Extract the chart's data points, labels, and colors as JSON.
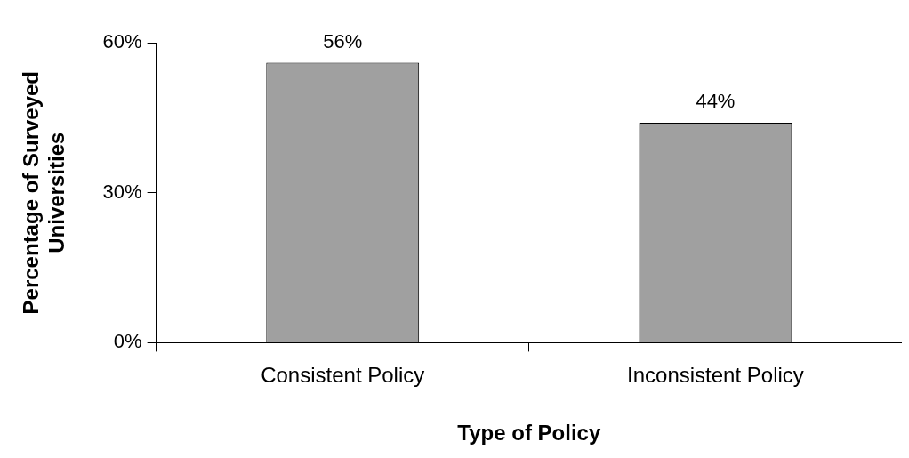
{
  "chart_data": {
    "type": "bar",
    "xlabel": "Type of Policy",
    "ylabel": "Percentage of Surveyed Universities",
    "categories": [
      "Consistent Policy",
      "Inconsistent Policy"
    ],
    "values": [
      56,
      44
    ],
    "color": "#a0a0a0",
    "value_labels": [
      "56%",
      "44%"
    ],
    "ylim": [
      0,
      60
    ],
    "yticks": [
      {
        "value": 0,
        "label": "0%"
      },
      {
        "value": 30,
        "label": "30%"
      },
      {
        "value": 60,
        "label": "60%"
      }
    ],
    "grid": false,
    "legend": false
  }
}
